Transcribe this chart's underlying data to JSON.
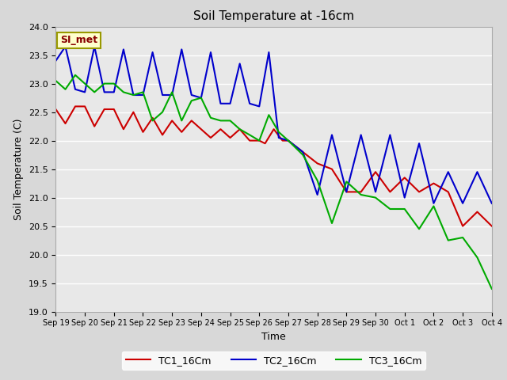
{
  "title": "Soil Temperature at -16cm",
  "xlabel": "Time",
  "ylabel": "Soil Temperature (C)",
  "ylim": [
    19.0,
    24.0
  ],
  "yticks": [
    19.0,
    19.5,
    20.0,
    20.5,
    21.0,
    21.5,
    22.0,
    22.5,
    23.0,
    23.5,
    24.0
  ],
  "bg_color": "#e8e8e8",
  "grid_color": "#ffffff",
  "annotation_text": "SI_met",
  "annotation_bg": "#ffffcc",
  "annotation_border": "#999900",
  "annotation_text_color": "#880000",
  "legend_entries": [
    "TC1_16Cm",
    "TC2_16Cm",
    "TC3_16Cm"
  ],
  "line_colors": [
    "#cc0000",
    "#0000cc",
    "#00aa00"
  ],
  "x_labels": [
    "Sep 19",
    "Sep 20",
    "Sep 21",
    "Sep 22",
    "Sep 23",
    "Sep 24",
    "Sep 25",
    "Sep 26",
    "Sep 27",
    "Sep 28",
    "Sep 29",
    "Sep 30",
    "Oct 1",
    "Oct 2",
    "Oct 3",
    "Oct 4"
  ],
  "TC1_x": [
    0,
    0.33,
    0.67,
    1,
    1.33,
    1.67,
    2,
    2.33,
    2.67,
    3,
    3.33,
    3.67,
    4,
    4.33,
    4.67,
    5,
    5.33,
    5.67,
    6,
    6.33,
    6.67,
    7,
    7.2,
    7.5,
    7.8,
    8,
    8.5,
    9,
    9.5,
    10,
    10.5,
    11,
    11.5,
    12,
    12.5,
    13,
    13.5,
    14,
    14.5,
    15
  ],
  "TC1_y": [
    22.55,
    22.3,
    22.6,
    22.6,
    22.25,
    22.55,
    22.55,
    22.2,
    22.5,
    22.15,
    22.4,
    22.1,
    22.35,
    22.15,
    22.35,
    22.2,
    22.05,
    22.2,
    22.05,
    22.2,
    22.0,
    22.0,
    21.95,
    22.2,
    22.0,
    22.0,
    21.8,
    21.6,
    21.5,
    21.1,
    21.1,
    21.45,
    21.1,
    21.35,
    21.1,
    21.25,
    21.1,
    20.5,
    20.75,
    20.5
  ],
  "TC2_x": [
    0,
    0.33,
    0.67,
    1,
    1.33,
    1.67,
    2,
    2.33,
    2.67,
    3,
    3.33,
    3.67,
    4,
    4.33,
    4.67,
    5,
    5.33,
    5.67,
    6,
    6.33,
    6.67,
    7,
    7.33,
    7.67,
    8,
    8.5,
    9,
    9.5,
    10,
    10.5,
    11,
    11.5,
    12,
    12.5,
    13,
    13.5,
    14,
    14.5,
    15
  ],
  "TC2_y": [
    23.4,
    23.65,
    22.9,
    22.85,
    23.65,
    22.85,
    22.85,
    23.6,
    22.8,
    22.8,
    23.55,
    22.8,
    22.8,
    23.6,
    22.8,
    22.75,
    23.55,
    22.65,
    22.65,
    23.35,
    22.65,
    22.6,
    23.55,
    22.05,
    22.0,
    21.8,
    21.05,
    22.1,
    21.1,
    22.1,
    21.1,
    22.1,
    21.0,
    21.95,
    20.9,
    21.45,
    20.9,
    21.45,
    20.9
  ],
  "TC3_x": [
    0,
    0.33,
    0.67,
    1,
    1.33,
    1.67,
    2,
    2.33,
    2.67,
    3,
    3.33,
    3.67,
    4,
    4.33,
    4.67,
    5,
    5.33,
    5.67,
    6,
    6.33,
    6.67,
    7,
    7.33,
    7.67,
    8,
    8.5,
    9,
    9.5,
    10,
    10.5,
    11,
    11.5,
    12,
    12.5,
    13,
    13.5,
    14,
    14.5,
    15
  ],
  "TC3_y": [
    23.05,
    22.9,
    23.15,
    23.0,
    22.85,
    23.0,
    23.0,
    22.85,
    22.8,
    22.85,
    22.35,
    22.5,
    22.85,
    22.35,
    22.7,
    22.75,
    22.4,
    22.35,
    22.35,
    22.2,
    22.1,
    22.0,
    22.45,
    22.15,
    22.0,
    21.75,
    21.3,
    20.55,
    21.28,
    21.05,
    21.0,
    20.8,
    20.8,
    20.45,
    20.85,
    20.25,
    20.3,
    19.95,
    19.4
  ]
}
